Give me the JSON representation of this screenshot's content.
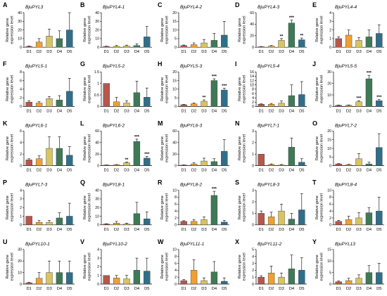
{
  "ylabel_line1": "Relative gene",
  "ylabel_line2": "expression level",
  "categories": [
    "D1",
    "D2",
    "D3",
    "D4",
    "D5"
  ],
  "colors": [
    "#b5574b",
    "#f0a030",
    "#d8c460",
    "#3f7a57",
    "#2f6f8a"
  ],
  "chart_data": [
    {
      "letter": "A",
      "gene": "BjuPYL3",
      "type": "bar",
      "categories": [
        "D1",
        "D2",
        "D3",
        "D4",
        "D5"
      ],
      "values": [
        1,
        6,
        13,
        10,
        20
      ],
      "err": [
        0.5,
        4,
        8,
        9,
        20
      ],
      "sig": [
        "",
        "",
        "",
        "",
        ""
      ],
      "ylim": [
        0,
        40
      ],
      "yticks": [
        0,
        10,
        20,
        30,
        40
      ]
    },
    {
      "letter": "B",
      "gene": "BjuPYL4-1",
      "type": "bar",
      "categories": [
        "D1",
        "D2",
        "D3",
        "D4",
        "D5"
      ],
      "values": [
        1,
        1,
        1.5,
        2,
        12
      ],
      "err": [
        0.3,
        1,
        1,
        2,
        12
      ],
      "sig": [
        "",
        "",
        "",
        "",
        ""
      ],
      "ylim": [
        0,
        40
      ],
      "yticks": [
        0,
        10,
        20,
        30,
        40
      ]
    },
    {
      "letter": "C",
      "gene": "BjuPYL4-2",
      "type": "bar",
      "categories": [
        "D1",
        "D2",
        "D3",
        "D4",
        "D5"
      ],
      "values": [
        1,
        1.5,
        2.5,
        4,
        7
      ],
      "err": [
        0.3,
        1,
        2,
        4,
        8
      ],
      "sig": [
        "",
        "",
        "",
        "",
        ""
      ],
      "ylim": [
        0,
        20
      ],
      "yticks": [
        0,
        5,
        10,
        15,
        20
      ]
    },
    {
      "letter": "D",
      "gene": "BjuPYL4-3",
      "type": "bar",
      "categories": [
        "D1",
        "D2",
        "D3",
        "D4",
        "D5"
      ],
      "values": [
        1,
        2,
        12,
        42,
        13
      ],
      "err": [
        0.3,
        1,
        3,
        5,
        3
      ],
      "sig": [
        "",
        "",
        "**",
        "***",
        "**"
      ],
      "ylim": [
        0,
        60
      ],
      "yticks": [
        0,
        20,
        40,
        60
      ]
    },
    {
      "letter": "E",
      "gene": "BjuPYL4-4",
      "type": "bar",
      "categories": [
        "D1",
        "D2",
        "D3",
        "D4",
        "D5"
      ],
      "values": [
        1,
        1.4,
        0.8,
        1.2,
        1.6
      ],
      "err": [
        0.2,
        0.6,
        0.3,
        0.8,
        1.0
      ],
      "sig": [
        "",
        "",
        "",
        "",
        ""
      ],
      "ylim": [
        0,
        4
      ],
      "yticks": [
        0,
        1,
        2,
        3,
        4
      ]
    },
    {
      "letter": "F",
      "gene": "BjuPYL5-1",
      "type": "bar",
      "categories": [
        "D1",
        "D2",
        "D3",
        "D4",
        "D5"
      ],
      "values": [
        1,
        0.8,
        1.8,
        1.5,
        3.5
      ],
      "err": [
        0.3,
        0.3,
        0.5,
        1,
        3
      ],
      "sig": [
        "",
        "",
        "",
        "",
        ""
      ],
      "ylim": [
        0,
        8
      ],
      "yticks": [
        0,
        2,
        4,
        6,
        8
      ]
    },
    {
      "letter": "G",
      "gene": "BjuPYL5-2",
      "type": "bar",
      "categories": [
        "D1",
        "D2",
        "D3",
        "D4",
        "D5"
      ],
      "values": [
        1,
        0.2,
        0.15,
        0.6,
        0.4
      ],
      "err": [
        0,
        0.2,
        0.1,
        0.5,
        0.4
      ],
      "sig": [
        "",
        "",
        "",
        "",
        ""
      ],
      "ylim": [
        0,
        1.5
      ],
      "yticks": [
        0,
        0.5,
        1.0,
        1.5
      ]
    },
    {
      "letter": "H",
      "gene": "BjuPYL5-3",
      "type": "bar",
      "categories": [
        "D1",
        "D2",
        "D3",
        "D4",
        "D5"
      ],
      "values": [
        1,
        1.5,
        3,
        15,
        9.5
      ],
      "err": [
        0.2,
        0.5,
        0.8,
        1,
        1
      ],
      "sig": [
        "",
        "",
        "**",
        "***",
        "***"
      ],
      "ylim": [
        0,
        20
      ],
      "yticks": [
        0,
        5,
        10,
        15,
        20
      ]
    },
    {
      "letter": "I",
      "gene": "BjuPYL5-4",
      "type": "bar",
      "categories": [
        "D1",
        "D2",
        "D3",
        "D4",
        "D5"
      ],
      "values": [
        1,
        1,
        1.5,
        5,
        5.5
      ],
      "err": [
        0.2,
        0.4,
        1,
        5,
        6
      ],
      "sig": [
        "",
        "",
        "",
        "",
        ""
      ],
      "ylim": [
        0,
        16
      ],
      "yticks": [
        0,
        2,
        4,
        6,
        8,
        10,
        12,
        14,
        16
      ]
    },
    {
      "letter": "J",
      "gene": "BjuPYL5-5",
      "type": "bar",
      "categories": [
        "D1",
        "D2",
        "D3",
        "D4",
        "D5"
      ],
      "values": [
        1,
        1,
        4,
        24,
        5
      ],
      "err": [
        0.2,
        0.3,
        1,
        3,
        1
      ],
      "sig": [
        "",
        "",
        "***",
        "***",
        "***"
      ],
      "ylim": [
        0,
        30
      ],
      "yticks": [
        0,
        10,
        20,
        30
      ]
    },
    {
      "letter": "K",
      "gene": "BjuPYL6-1",
      "type": "bar",
      "categories": [
        "D1",
        "D2",
        "D3",
        "D4",
        "D5"
      ],
      "values": [
        1,
        1.2,
        3,
        3,
        1.8
      ],
      "err": [
        0.2,
        0.5,
        2,
        2,
        1.5
      ],
      "sig": [
        "",
        "",
        "",
        "",
        ""
      ],
      "ylim": [
        0,
        6
      ],
      "yticks": [
        0,
        2,
        4,
        6
      ]
    },
    {
      "letter": "L",
      "gene": "BjuPYL6-2",
      "type": "bar",
      "categories": [
        "D1",
        "D2",
        "D3",
        "D4",
        "D5"
      ],
      "values": [
        1,
        1.5,
        5,
        42,
        13
      ],
      "err": [
        0.2,
        0.5,
        1.5,
        4,
        3
      ],
      "sig": [
        "",
        "",
        "**",
        "***",
        "***"
      ],
      "ylim": [
        0,
        60
      ],
      "yticks": [
        0,
        20,
        40,
        60
      ]
    },
    {
      "letter": "M",
      "gene": "BjuPYL6-3",
      "type": "bar",
      "categories": [
        "D1",
        "D2",
        "D3",
        "D4",
        "D5"
      ],
      "values": [
        1,
        3,
        8,
        7,
        25
      ],
      "err": [
        0.3,
        2,
        5,
        5,
        20
      ],
      "sig": [
        "",
        "",
        "",
        "",
        ""
      ],
      "ylim": [
        0,
        60
      ],
      "yticks": [
        0,
        20,
        40,
        60
      ]
    },
    {
      "letter": "N",
      "gene": "BjuPYL7-1",
      "type": "bar",
      "categories": [
        "D1",
        "D2",
        "D3",
        "D4",
        "D5"
      ],
      "values": [
        1,
        0.1,
        0.05,
        1.6,
        0.3
      ],
      "err": [
        0,
        0.05,
        0.05,
        0.8,
        0.3
      ],
      "sig": [
        "",
        "",
        "",
        "",
        ""
      ],
      "ylim": [
        0,
        3
      ],
      "yticks": [
        0,
        1,
        2,
        3
      ]
    },
    {
      "letter": "O",
      "gene": "BjuPYL7-2",
      "type": "bar",
      "categories": [
        "D1",
        "D2",
        "D3",
        "D4",
        "D5"
      ],
      "values": [
        1,
        0.5,
        4,
        1,
        10.5
      ],
      "err": [
        0.2,
        0.3,
        3,
        1,
        8
      ],
      "sig": [
        "",
        "",
        "",
        "",
        ""
      ],
      "ylim": [
        0,
        20
      ],
      "yticks": [
        0,
        5,
        10,
        15,
        20
      ]
    },
    {
      "letter": "P",
      "gene": "BjuPYL7-3",
      "type": "bar",
      "categories": [
        "D1",
        "D2",
        "D3",
        "D4",
        "D5"
      ],
      "values": [
        1,
        0.3,
        0.3,
        0.8,
        1
      ],
      "err": [
        0,
        0.2,
        0.2,
        0.6,
        1.5
      ],
      "sig": [
        "",
        "",
        "",
        "",
        ""
      ],
      "ylim": [
        0,
        4
      ],
      "yticks": [
        0,
        1,
        2,
        3,
        4
      ]
    },
    {
      "letter": "Q",
      "gene": "BjuPYL8-1",
      "type": "bar",
      "categories": [
        "D1",
        "D2",
        "D3",
        "D4",
        "D5"
      ],
      "values": [
        1,
        2,
        1,
        13,
        7
      ],
      "err": [
        0.3,
        2,
        1,
        13,
        8
      ],
      "sig": [
        "",
        "",
        "",
        "",
        ""
      ],
      "ylim": [
        0,
        40
      ],
      "yticks": [
        0,
        10,
        20,
        30,
        40
      ]
    },
    {
      "letter": "R",
      "gene": "BjuPYL8-2",
      "type": "bar",
      "categories": [
        "D1",
        "D2",
        "D3",
        "D4",
        "D5"
      ],
      "values": [
        1,
        1,
        1.5,
        8.5,
        0.8
      ],
      "err": [
        0.2,
        0.5,
        0.8,
        1.2,
        0.5
      ],
      "sig": [
        "",
        "",
        "",
        "***",
        ""
      ],
      "ylim": [
        0,
        10
      ],
      "yticks": [
        0,
        2,
        4,
        6,
        8,
        10
      ]
    },
    {
      "letter": "S",
      "gene": "BjuPYL8-3",
      "type": "bar",
      "categories": [
        "D1",
        "D2",
        "D3",
        "D4",
        "D5"
      ],
      "values": [
        1,
        0.7,
        1.2,
        0.5,
        1.3
      ],
      "err": [
        0.2,
        0.4,
        0.6,
        0.5,
        1.4
      ],
      "sig": [
        "",
        "",
        "",
        "",
        ""
      ],
      "ylim": [
        0,
        3
      ],
      "yticks": [
        0,
        1,
        2,
        3
      ]
    },
    {
      "letter": "T",
      "gene": "BjuPYL8-4",
      "type": "bar",
      "categories": [
        "D1",
        "D2",
        "D3",
        "D4",
        "D5"
      ],
      "values": [
        1,
        1.5,
        2,
        3.5,
        4
      ],
      "err": [
        0.3,
        1,
        1.5,
        1.5,
        4
      ],
      "sig": [
        "",
        "",
        "",
        "",
        ""
      ],
      "ylim": [
        0,
        10
      ],
      "yticks": [
        0,
        2,
        4,
        6,
        8,
        10
      ]
    },
    {
      "letter": "U",
      "gene": "BjuPYL10-1",
      "type": "bar",
      "categories": [
        "D1",
        "D2",
        "D3",
        "D4",
        "D5"
      ],
      "values": [
        1,
        5,
        10,
        10,
        10
      ],
      "err": [
        0.5,
        5,
        10,
        10,
        10
      ],
      "sig": [
        "",
        "",
        "",
        "",
        ""
      ],
      "ylim": [
        0,
        30
      ],
      "yticks": [
        0,
        10,
        20,
        30
      ]
    },
    {
      "letter": "V",
      "gene": "BjuPYL10-2",
      "type": "bar",
      "categories": [
        "D1",
        "D2",
        "D3",
        "D4",
        "D5"
      ],
      "values": [
        1,
        0.7,
        0.6,
        1.6,
        1.5
      ],
      "err": [
        0,
        0.3,
        0.4,
        1.4,
        1.5
      ],
      "sig": [
        "",
        "",
        "",
        "",
        ""
      ],
      "ylim": [
        0,
        4
      ],
      "yticks": [
        0,
        1,
        2,
        3,
        4
      ]
    },
    {
      "letter": "W",
      "gene": "BjuPYL11-1",
      "type": "bar",
      "categories": [
        "D1",
        "D2",
        "D3",
        "D4",
        "D5"
      ],
      "values": [
        1,
        4,
        1,
        3.5,
        0.8
      ],
      "err": [
        0.3,
        3,
        0.8,
        3,
        1
      ],
      "sig": [
        "",
        "",
        "",
        "",
        ""
      ],
      "ylim": [
        0,
        10
      ],
      "yticks": [
        0,
        2,
        4,
        6,
        8,
        10
      ]
    },
    {
      "letter": "X",
      "gene": "BjuPYL11-2",
      "type": "bar",
      "categories": [
        "D1",
        "D2",
        "D3",
        "D4",
        "D5"
      ],
      "values": [
        1,
        1.6,
        1,
        2.2,
        2
      ],
      "err": [
        0.2,
        1,
        0.6,
        2,
        1.8
      ],
      "sig": [
        "",
        "",
        "",
        "",
        ""
      ],
      "ylim": [
        0,
        5
      ],
      "yticks": [
        0,
        1,
        2,
        3,
        4,
        5
      ]
    },
    {
      "letter": "Y",
      "gene": "BjuPYL13",
      "type": "bar",
      "categories": [
        "D1",
        "D2",
        "D3",
        "D4",
        "D5"
      ],
      "values": [
        1,
        1.5,
        2.5,
        5,
        5
      ],
      "err": [
        0.3,
        1,
        1.5,
        3,
        4
      ],
      "sig": [
        "",
        "",
        "",
        "",
        ""
      ],
      "ylim": [
        0,
        15
      ],
      "yticks": [
        0,
        5,
        10,
        15
      ]
    }
  ]
}
